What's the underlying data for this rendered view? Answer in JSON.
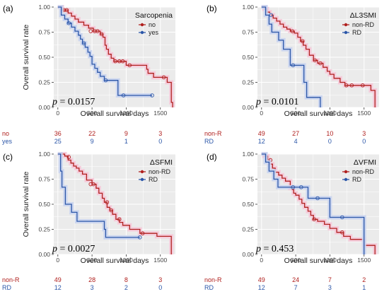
{
  "colors": {
    "red": "#b0201e",
    "blue": "#2b56a8",
    "halo_red": "#f6c9d9",
    "halo_blue": "#c9d4ef",
    "panel_bg": "#ebebeb",
    "grid": "#ffffff"
  },
  "chart_data": [
    {
      "type": "line",
      "panel_label": "(a)",
      "legend_title": "Sarcopenia",
      "legend_position": "top-right",
      "xlabel": "Overall survival days",
      "ylabel": "Overall survival rate",
      "xlim": [
        -60,
        1720
      ],
      "ylim": [
        0,
        1
      ],
      "x_ticks": [
        0,
        500,
        1000,
        1500
      ],
      "y_ticks": [
        "0.00",
        "0.25",
        "0.50",
        "0.75",
        "1.00"
      ],
      "grid": true,
      "p_prefix": "p",
      "p_value": " = 0.0157",
      "risk_table_x": [
        0,
        500,
        1000,
        1500
      ],
      "series": [
        {
          "name": "no",
          "color": "red",
          "risk_label": "no",
          "risk": [
            "36",
            "22",
            "9",
            "3"
          ],
          "steps": [
            [
              0,
              1.0
            ],
            [
              60,
              0.97
            ],
            [
              150,
              0.94
            ],
            [
              200,
              0.91
            ],
            [
              250,
              0.88
            ],
            [
              300,
              0.85
            ],
            [
              380,
              0.82
            ],
            [
              450,
              0.79
            ],
            [
              520,
              0.76
            ],
            [
              620,
              0.73
            ],
            [
              660,
              0.7
            ],
            [
              690,
              0.62
            ],
            [
              710,
              0.58
            ],
            [
              740,
              0.53
            ],
            [
              780,
              0.49
            ],
            [
              820,
              0.46
            ],
            [
              1000,
              0.42
            ],
            [
              1300,
              0.38
            ],
            [
              1320,
              0.34
            ],
            [
              1400,
              0.3
            ],
            [
              1600,
              0.25
            ],
            [
              1660,
              0.05
            ],
            [
              1680,
              0.0
            ]
          ],
          "censor": [
            [
              90,
              0.97
            ],
            [
              130,
              0.97
            ],
            [
              480,
              0.76
            ],
            [
              540,
              0.76
            ],
            [
              580,
              0.76
            ],
            [
              640,
              0.73
            ],
            [
              840,
              0.46
            ],
            [
              900,
              0.46
            ],
            [
              950,
              0.46
            ],
            [
              1050,
              0.42
            ],
            [
              1550,
              0.3
            ]
          ]
        },
        {
          "name": "yes",
          "color": "blue",
          "risk_label": "yes",
          "risk": [
            "25",
            "9",
            "1",
            "0"
          ],
          "steps": [
            [
              0,
              1.0
            ],
            [
              50,
              0.92
            ],
            [
              100,
              0.88
            ],
            [
              150,
              0.84
            ],
            [
              200,
              0.8
            ],
            [
              250,
              0.76
            ],
            [
              300,
              0.72
            ],
            [
              330,
              0.68
            ],
            [
              360,
              0.64
            ],
            [
              400,
              0.6
            ],
            [
              440,
              0.55
            ],
            [
              470,
              0.51
            ],
            [
              500,
              0.43
            ],
            [
              540,
              0.39
            ],
            [
              580,
              0.35
            ],
            [
              620,
              0.31
            ],
            [
              680,
              0.27
            ],
            [
              880,
              0.12
            ],
            [
              1380,
              0.12
            ]
          ],
          "censor": [
            [
              160,
              0.84
            ],
            [
              380,
              0.64
            ],
            [
              700,
              0.27
            ],
            [
              960,
              0.12
            ],
            [
              1380,
              0.12
            ]
          ]
        }
      ]
    },
    {
      "type": "line",
      "panel_label": "(b)",
      "legend_title": "ΔL3SMI",
      "legend_position": "top-right",
      "xlabel": "Overall survival days",
      "ylabel": "",
      "xlim": [
        -60,
        1720
      ],
      "ylim": [
        0,
        1
      ],
      "x_ticks": [
        0,
        500,
        1000,
        1500
      ],
      "y_ticks": [
        "0.00",
        "0.25",
        "0.50",
        "0.75",
        "1.00"
      ],
      "grid": true,
      "p_prefix": "p",
      "p_value": " = 0.0101",
      "risk_table_x": [
        0,
        500,
        1000,
        1500
      ],
      "series": [
        {
          "name": "non-RD",
          "color": "red",
          "risk_label": "non-R",
          "risk": [
            "49",
            "27",
            "10",
            "3"
          ],
          "steps": [
            [
              0,
              1.0
            ],
            [
              40,
              0.98
            ],
            [
              80,
              0.95
            ],
            [
              120,
              0.92
            ],
            [
              170,
              0.89
            ],
            [
              220,
              0.86
            ],
            [
              270,
              0.83
            ],
            [
              320,
              0.8
            ],
            [
              370,
              0.78
            ],
            [
              420,
              0.76
            ],
            [
              480,
              0.74
            ],
            [
              530,
              0.7
            ],
            [
              570,
              0.66
            ],
            [
              610,
              0.62
            ],
            [
              650,
              0.58
            ],
            [
              700,
              0.52
            ],
            [
              760,
              0.47
            ],
            [
              820,
              0.44
            ],
            [
              900,
              0.4
            ],
            [
              960,
              0.36
            ],
            [
              1000,
              0.33
            ],
            [
              1060,
              0.29
            ],
            [
              1150,
              0.25
            ],
            [
              1220,
              0.22
            ],
            [
              1600,
              0.17
            ],
            [
              1660,
              0.0
            ]
          ],
          "censor": [
            [
              450,
              0.76
            ],
            [
              600,
              0.66
            ],
            [
              780,
              0.47
            ],
            [
              860,
              0.44
            ],
            [
              1240,
              0.22
            ],
            [
              1320,
              0.22
            ],
            [
              1480,
              0.22
            ]
          ]
        },
        {
          "name": "RD",
          "color": "blue",
          "risk_label": "RD",
          "risk": [
            "12",
            "4",
            "0",
            "0"
          ],
          "steps": [
            [
              0,
              1.0
            ],
            [
              60,
              0.92
            ],
            [
              110,
              0.83
            ],
            [
              150,
              0.75
            ],
            [
              250,
              0.67
            ],
            [
              320,
              0.58
            ],
            [
              420,
              0.42
            ],
            [
              540,
              0.42
            ],
            [
              620,
              0.25
            ],
            [
              660,
              0.1
            ],
            [
              860,
              0.0
            ]
          ],
          "censor": [
            [
              140,
              0.92
            ],
            [
              460,
              0.42
            ]
          ]
        }
      ]
    },
    {
      "type": "line",
      "panel_label": "(c)",
      "legend_title": "ΔSFMI",
      "legend_position": "top-right",
      "xlabel": "Overall survival days",
      "ylabel": "Overall survival rate",
      "xlim": [
        -60,
        1720
      ],
      "ylim": [
        0,
        1
      ],
      "x_ticks": [
        0,
        500,
        1000,
        1500
      ],
      "y_ticks": [
        "0.00",
        "0.25",
        "0.50",
        "0.75",
        "1.00"
      ],
      "grid": true,
      "p_prefix": "p",
      "p_value": " = 0.0027",
      "risk_table_x": [
        0,
        500,
        1000,
        1500
      ],
      "series": [
        {
          "name": "non-RD",
          "color": "red",
          "risk_label": "non-R",
          "risk": [
            "49",
            "28",
            "8",
            "3"
          ],
          "steps": [
            [
              0,
              1.0
            ],
            [
              100,
              0.98
            ],
            [
              150,
              0.94
            ],
            [
              190,
              0.91
            ],
            [
              230,
              0.88
            ],
            [
              270,
              0.86
            ],
            [
              310,
              0.83
            ],
            [
              360,
              0.8
            ],
            [
              420,
              0.74
            ],
            [
              500,
              0.7
            ],
            [
              560,
              0.66
            ],
            [
              600,
              0.61
            ],
            [
              650,
              0.56
            ],
            [
              680,
              0.52
            ],
            [
              720,
              0.47
            ],
            [
              760,
              0.44
            ],
            [
              800,
              0.4
            ],
            [
              850,
              0.35
            ],
            [
              900,
              0.32
            ],
            [
              950,
              0.29
            ],
            [
              1050,
              0.25
            ],
            [
              1200,
              0.21
            ],
            [
              1450,
              0.18
            ],
            [
              1660,
              0.0
            ]
          ],
          "censor": [
            [
              160,
              0.97
            ],
            [
              480,
              0.7
            ],
            [
              520,
              0.7
            ],
            [
              720,
              0.52
            ],
            [
              780,
              0.44
            ],
            [
              900,
              0.35
            ],
            [
              1240,
              0.21
            ]
          ]
        },
        {
          "name": "RD",
          "color": "blue",
          "risk_label": "RD",
          "risk": [
            "12",
            "3",
            "2",
            "0"
          ],
          "steps": [
            [
              0,
              1.0
            ],
            [
              40,
              0.83
            ],
            [
              60,
              0.67
            ],
            [
              110,
              0.5
            ],
            [
              200,
              0.42
            ],
            [
              280,
              0.33
            ],
            [
              680,
              0.25
            ],
            [
              700,
              0.17
            ],
            [
              1200,
              0.17
            ]
          ],
          "censor": [
            [
              1200,
              0.17
            ]
          ]
        }
      ]
    },
    {
      "type": "line",
      "panel_label": "(d)",
      "legend_title": "ΔVFMI",
      "legend_position": "top-right",
      "xlabel": "Overall survival days",
      "ylabel": "",
      "xlim": [
        -60,
        1720
      ],
      "ylim": [
        0,
        1
      ],
      "x_ticks": [
        0,
        500,
        1000,
        1500
      ],
      "y_ticks": [
        "0.00",
        "0.25",
        "0.50",
        "0.75",
        "1.00"
      ],
      "grid": true,
      "p_prefix": "p",
      "p_value": " = 0.453",
      "risk_table_x": [
        0,
        500,
        1000,
        1500
      ],
      "series": [
        {
          "name": "non-RD",
          "color": "red",
          "risk_label": "non-R",
          "risk": [
            "49",
            "24",
            "7",
            "2"
          ],
          "steps": [
            [
              0,
              1.0
            ],
            [
              40,
              0.98
            ],
            [
              90,
              0.94
            ],
            [
              120,
              0.9
            ],
            [
              160,
              0.86
            ],
            [
              200,
              0.82
            ],
            [
              250,
              0.79
            ],
            [
              300,
              0.76
            ],
            [
              350,
              0.73
            ],
            [
              420,
              0.66
            ],
            [
              470,
              0.61
            ],
            [
              500,
              0.59
            ],
            [
              550,
              0.55
            ],
            [
              590,
              0.51
            ],
            [
              630,
              0.47
            ],
            [
              680,
              0.43
            ],
            [
              720,
              0.39
            ],
            [
              760,
              0.35
            ],
            [
              820,
              0.33
            ],
            [
              920,
              0.3
            ],
            [
              1000,
              0.26
            ],
            [
              1100,
              0.22
            ],
            [
              1200,
              0.18
            ],
            [
              1300,
              0.15
            ],
            [
              1500,
              0.09
            ],
            [
              1660,
              0.0
            ]
          ],
          "censor": [
            [
              130,
              0.94
            ],
            [
              460,
              0.66
            ],
            [
              770,
              0.35
            ],
            [
              1180,
              0.22
            ]
          ]
        },
        {
          "name": "RD",
          "color": "blue",
          "risk_label": "RD",
          "risk": [
            "12",
            "7",
            "3",
            "1"
          ],
          "steps": [
            [
              0,
              1.0
            ],
            [
              60,
              0.92
            ],
            [
              110,
              0.83
            ],
            [
              180,
              0.75
            ],
            [
              240,
              0.67
            ],
            [
              680,
              0.56
            ],
            [
              1000,
              0.37
            ],
            [
              1500,
              0.0
            ]
          ],
          "censor": [
            [
              460,
              0.67
            ],
            [
              580,
              0.67
            ],
            [
              820,
              0.56
            ],
            [
              1180,
              0.37
            ]
          ]
        }
      ]
    }
  ]
}
